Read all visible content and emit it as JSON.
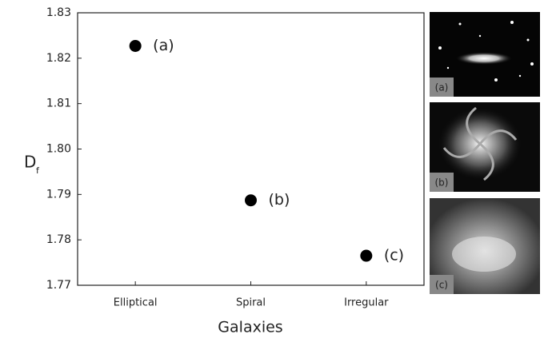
{
  "chart_data": {
    "type": "scatter",
    "xlabel": "Galaxies",
    "ylabel": "D",
    "ylabel_subscript": "f",
    "categories": [
      "Elliptical",
      "Spiral",
      "Irregular"
    ],
    "values": [
      1.8227,
      1.7887,
      1.7765
    ],
    "point_labels": [
      "(a)",
      "(b)",
      "(c)"
    ],
    "color": "#000000",
    "ylim": [
      1.77,
      1.83
    ],
    "yticks": [
      1.77,
      1.78,
      1.79,
      {
        "value": 1.8,
        "label": "1.80"
      },
      1.81,
      1.82,
      1.83
    ],
    "panel_labels": [
      "(a)",
      "(b)",
      "(c)"
    ]
  }
}
